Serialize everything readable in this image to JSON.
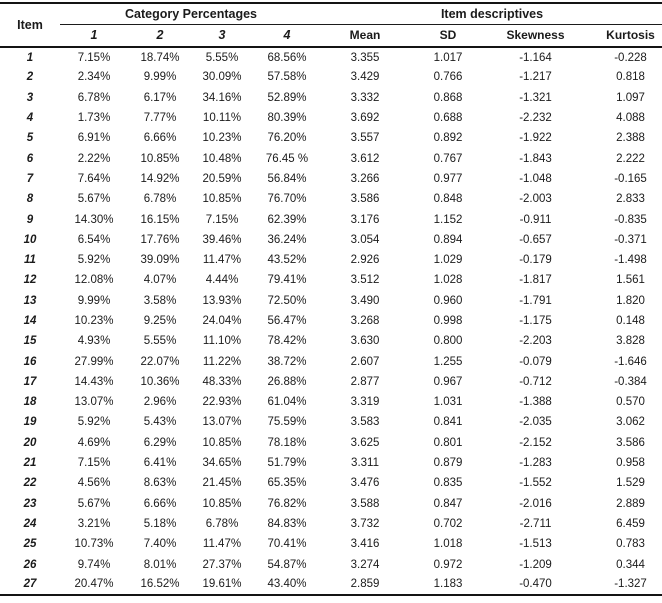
{
  "colors": {
    "text": "#1b1b1b",
    "rule": "#141414",
    "background": "#ffffff"
  },
  "table": {
    "columns": {
      "item": "Item",
      "group1": "Category Percentages",
      "group2": "Item descriptives",
      "sub": [
        "1",
        "2",
        "3",
        "4",
        "Mean",
        "SD",
        "Skewness",
        "Kurtosis"
      ]
    },
    "rows": [
      {
        "item": "1",
        "values": [
          "7.15%",
          "18.74%",
          "5.55%",
          "68.56%",
          "3.355",
          "1.017",
          "-1.164",
          "-0.228"
        ]
      },
      {
        "item": "2",
        "values": [
          "2.34%",
          "9.99%",
          "30.09%",
          "57.58%",
          "3.429",
          "0.766",
          "-1.217",
          "0.818"
        ]
      },
      {
        "item": "3",
        "values": [
          "6.78%",
          "6.17%",
          "34.16%",
          "52.89%",
          "3.332",
          "0.868",
          "-1.321",
          "1.097"
        ]
      },
      {
        "item": "4",
        "values": [
          "1.73%",
          "7.77%",
          "10.11%",
          "80.39%",
          "3.692",
          "0.688",
          "-2.232",
          "4.088"
        ]
      },
      {
        "item": "5",
        "values": [
          "6.91%",
          "6.66%",
          "10.23%",
          "76.20%",
          "3.557",
          "0.892",
          "-1.922",
          "2.388"
        ]
      },
      {
        "item": "6",
        "values": [
          "2.22%",
          "10.85%",
          "10.48%",
          "76.45 %",
          "3.612",
          "0.767",
          "-1.843",
          "2.222"
        ]
      },
      {
        "item": "7",
        "values": [
          "7.64%",
          "14.92%",
          "20.59%",
          "56.84%",
          "3.266",
          "0.977",
          "-1.048",
          "-0.165"
        ]
      },
      {
        "item": "8",
        "values": [
          "5.67%",
          "6.78%",
          "10.85%",
          "76.70%",
          "3.586",
          "0.848",
          "-2.003",
          "2.833"
        ]
      },
      {
        "item": "9",
        "values": [
          "14.30%",
          "16.15%",
          "7.15%",
          "62.39%",
          "3.176",
          "1.152",
          "-0.911",
          "-0.835"
        ]
      },
      {
        "item": "10",
        "values": [
          "6.54%",
          "17.76%",
          "39.46%",
          "36.24%",
          "3.054",
          "0.894",
          "-0.657",
          "-0.371"
        ]
      },
      {
        "item": "11",
        "values": [
          "5.92%",
          "39.09%",
          "11.47%",
          "43.52%",
          "2.926",
          "1.029",
          "-0.179",
          "-1.498"
        ]
      },
      {
        "item": "12",
        "values": [
          "12.08%",
          "4.07%",
          "4.44%",
          "79.41%",
          "3.512",
          "1.028",
          "-1.817",
          "1.561"
        ]
      },
      {
        "item": "13",
        "values": [
          "9.99%",
          "3.58%",
          "13.93%",
          "72.50%",
          "3.490",
          "0.960",
          "-1.791",
          "1.820"
        ]
      },
      {
        "item": "14",
        "values": [
          "10.23%",
          "9.25%",
          "24.04%",
          "56.47%",
          "3.268",
          "0.998",
          "-1.175",
          "0.148"
        ]
      },
      {
        "item": "15",
        "values": [
          "4.93%",
          "5.55%",
          "11.10%",
          "78.42%",
          "3.630",
          "0.800",
          "-2.203",
          "3.828"
        ]
      },
      {
        "item": "16",
        "values": [
          "27.99%",
          "22.07%",
          "11.22%",
          "38.72%",
          "2.607",
          "1.255",
          "-0.079",
          "-1.646"
        ]
      },
      {
        "item": "17",
        "values": [
          "14.43%",
          "10.36%",
          "48.33%",
          "26.88%",
          "2.877",
          "0.967",
          "-0.712",
          "-0.384"
        ]
      },
      {
        "item": "18",
        "values": [
          "13.07%",
          "2.96%",
          "22.93%",
          "61.04%",
          "3.319",
          "1.031",
          "-1.388",
          "0.570"
        ]
      },
      {
        "item": "19",
        "values": [
          "5.92%",
          "5.43%",
          "13.07%",
          "75.59%",
          "3.583",
          "0.841",
          "-2.035",
          "3.062"
        ]
      },
      {
        "item": "20",
        "values": [
          "4.69%",
          "6.29%",
          "10.85%",
          "78.18%",
          "3.625",
          "0.801",
          "-2.152",
          "3.586"
        ]
      },
      {
        "item": "21",
        "values": [
          "7.15%",
          "6.41%",
          "34.65%",
          "51.79%",
          "3.311",
          "0.879",
          "-1.283",
          "0.958"
        ]
      },
      {
        "item": "22",
        "values": [
          "4.56%",
          "8.63%",
          "21.45%",
          "65.35%",
          "3.476",
          "0.835",
          "-1.552",
          "1.529"
        ]
      },
      {
        "item": "23",
        "values": [
          "5.67%",
          "6.66%",
          "10.85%",
          "76.82%",
          "3.588",
          "0.847",
          "-2.016",
          "2.889"
        ]
      },
      {
        "item": "24",
        "values": [
          "3.21%",
          "5.18%",
          "6.78%",
          "84.83%",
          "3.732",
          "0.702",
          "-2.711",
          "6.459"
        ]
      },
      {
        "item": "25",
        "values": [
          "10.73%",
          "7.40%",
          "11.47%",
          "70.41%",
          "3.416",
          "1.018",
          "-1.513",
          "0.783"
        ]
      },
      {
        "item": "26",
        "values": [
          "9.74%",
          "8.01%",
          "27.37%",
          "54.87%",
          "3.274",
          "0.972",
          "-1.209",
          "0.344"
        ]
      },
      {
        "item": "27",
        "values": [
          "20.47%",
          "16.52%",
          "19.61%",
          "43.40%",
          "2.859",
          "1.183",
          "-0.470",
          "-1.327"
        ]
      }
    ]
  }
}
